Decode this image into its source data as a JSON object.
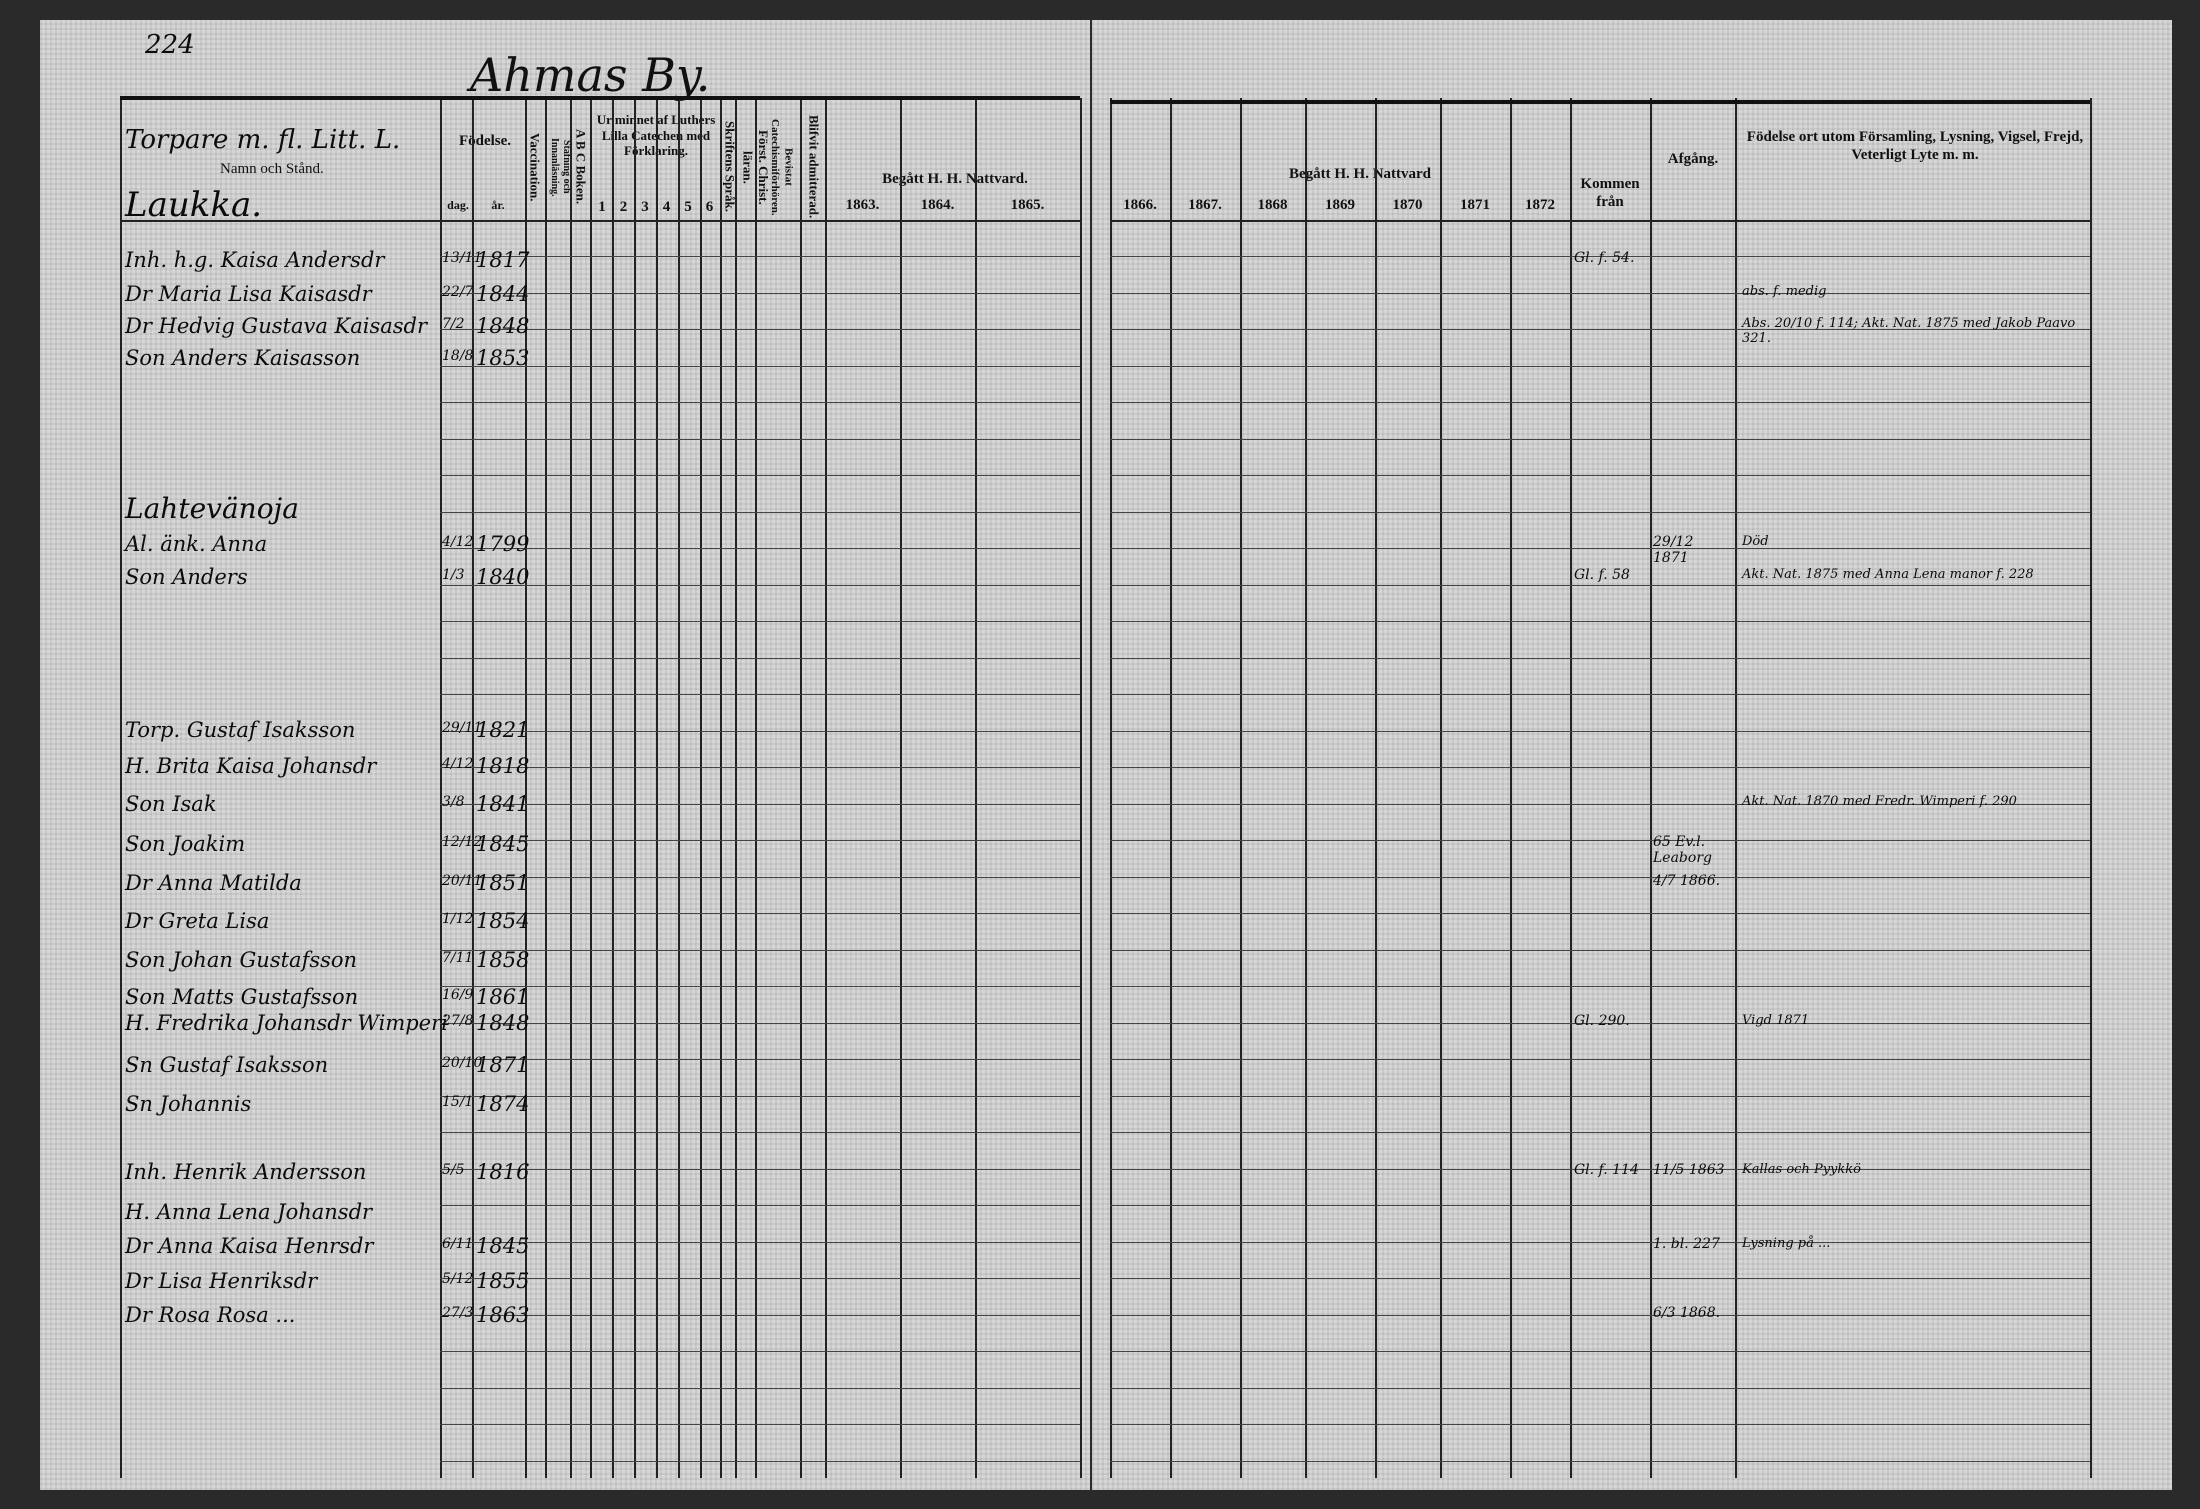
{
  "page_number": "224",
  "village_title": "Ahmas By.",
  "left_header": {
    "category": "Torpare m. fl. Litt. L.",
    "name_col": "Namn och Stånd.",
    "birth": "Födelse.",
    "day": "dag.",
    "year": "år.",
    "vaccination": "Vaccination.",
    "spelling": "Stafning och Innanläsning.",
    "abc": "A B C Boken.",
    "catechism": "Ur minnet af Luthers Lilla Catechen med Förklaring.",
    "catechism_nums": [
      "1",
      "2",
      "3",
      "4",
      "5",
      "6"
    ],
    "writing": "Skriftens Språk.",
    "christian": "Först. Christ. läran.",
    "exams": "Bevistat Catechismiförhören.",
    "admitted": "Blifvit admitterad.",
    "communion": "Begått H. H. Nattvard.",
    "years": [
      "1863.",
      "1864.",
      "1865."
    ]
  },
  "right_header": {
    "communion": "Begått H. H. Nattvard",
    "years": [
      "1866.",
      "1867.",
      "1868",
      "1869",
      "1870",
      "1871",
      "1872"
    ],
    "came_from": "Kommen från",
    "departure": "Afgång.",
    "notes": "Födelse ort utom Församling, Lysning, Vigsel, Frejd, Veterligt Lyte m. m."
  },
  "sections": [
    "Laukka.",
    "Lahtevänoja"
  ],
  "entries": [
    {
      "name": "Inh. h.g. Kaisa Andersdr",
      "day": "13/11",
      "year": "1817",
      "came_from": "Gl. f. 54.",
      "departure": "",
      "note": ""
    },
    {
      "name": "Dr Maria Lisa Kaisasdr",
      "day": "22/7",
      "year": "1844",
      "came_from": "",
      "departure": "",
      "note": "abs. f. medig"
    },
    {
      "name": "Dr Hedvig Gustava Kaisasdr",
      "day": "7/2",
      "year": "1848",
      "came_from": "",
      "departure": "",
      "note": "Abs. 20/10 f. 114; Akt. Nat. 1875 med Jakob Paavo 321."
    },
    {
      "name": "Son Anders Kaisasson",
      "day": "18/8",
      "year": "1853",
      "came_from": "",
      "departure": "",
      "note": ""
    },
    {
      "name": "Al. änk. Anna",
      "day": "4/12",
      "year": "1799",
      "came_from": "",
      "departure": "29/12 1871",
      "note": "Död"
    },
    {
      "name": "Son Anders",
      "day": "1/3",
      "year": "1840",
      "came_from": "Gl. f. 58",
      "departure": "",
      "note": "Akt. Nat. 1875 med Anna Lena manor f. 228"
    },
    {
      "name": "Torp. Gustaf Isaksson",
      "day": "29/11",
      "year": "1821",
      "came_from": "",
      "departure": "",
      "note": ""
    },
    {
      "name": "H. Brita Kaisa Johansdr",
      "day": "4/12",
      "year": "1818",
      "came_from": "",
      "departure": "",
      "note": ""
    },
    {
      "name": "Son Isak",
      "day": "3/8",
      "year": "1841",
      "came_from": "",
      "departure": "",
      "note": "Akt. Nat. 1870 med Fredr. Wimperi f. 290"
    },
    {
      "name": "Son Joakim",
      "day": "12/12",
      "year": "1845",
      "came_from": "",
      "departure": "65 Ev.l. Leaborg",
      "note": ""
    },
    {
      "name": "Dr Anna Matilda",
      "day": "20/11",
      "year": "1851",
      "came_from": "",
      "departure": "4/7 1866.",
      "note": ""
    },
    {
      "name": "Dr Greta Lisa",
      "day": "1/12",
      "year": "1854",
      "came_from": "",
      "departure": "",
      "note": ""
    },
    {
      "name": "Son Johan Gustafsson",
      "day": "7/11",
      "year": "1858",
      "came_from": "",
      "departure": "",
      "note": ""
    },
    {
      "name": "Son Matts Gustafsson",
      "day": "16/9",
      "year": "1861",
      "came_from": "",
      "departure": "",
      "note": ""
    },
    {
      "name": "H. Fredrika Johansdr Wimperi",
      "day": "27/8",
      "year": "1848",
      "came_from": "Gl. 290.",
      "departure": "",
      "note": "Vigd 1871"
    },
    {
      "name": "Sn Gustaf Isaksson",
      "day": "20/10",
      "year": "1871",
      "came_from": "",
      "departure": "",
      "note": ""
    },
    {
      "name": "Sn Johannis",
      "day": "15/1",
      "year": "1874",
      "came_from": "",
      "departure": "",
      "note": ""
    },
    {
      "name": "Inh. Henrik Andersson",
      "day": "5/5",
      "year": "1816",
      "came_from": "Gl. f. 114",
      "departure": "11/5 1863",
      "note": "Kallas och Pyykkö"
    },
    {
      "name": "H. Anna Lena Johansdr",
      "day": "",
      "year": "",
      "came_from": "",
      "departure": "",
      "note": ""
    },
    {
      "name": "Dr Anna Kaisa Henrsdr",
      "day": "6/11",
      "year": "1845",
      "came_from": "",
      "departure": "1. bl. 227",
      "note": "Lysning på ..."
    },
    {
      "name": "Dr Lisa Henriksdr",
      "day": "5/12",
      "year": "1855",
      "came_from": "",
      "departure": "",
      "note": ""
    },
    {
      "name": "Dr Rosa Rosa ...",
      "day": "27/3",
      "year": "1863",
      "came_from": "",
      "departure": "6/3 1868.",
      "note": ""
    }
  ]
}
